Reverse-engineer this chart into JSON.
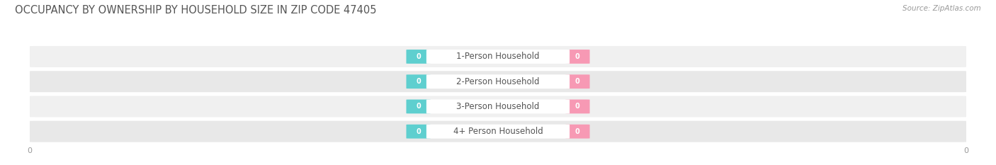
{
  "title": "OCCUPANCY BY OWNERSHIP BY HOUSEHOLD SIZE IN ZIP CODE 47405",
  "source": "Source: ZipAtlas.com",
  "categories": [
    "1-Person Household",
    "2-Person Household",
    "3-Person Household",
    "4+ Person Household"
  ],
  "owner_values": [
    0,
    0,
    0,
    0
  ],
  "renter_values": [
    0,
    0,
    0,
    0
  ],
  "owner_color": "#5ecfcf",
  "renter_color": "#f799b4",
  "row_bg_color_odd": "#f0f0f0",
  "row_bg_color_even": "#e8e8e8",
  "title_color": "#555555",
  "label_color": "#555555",
  "source_color": "#999999",
  "title_fontsize": 10.5,
  "source_fontsize": 7.5,
  "label_fontsize": 8.5,
  "value_fontsize": 7,
  "tick_fontsize": 8,
  "xlim": [
    -1,
    1
  ],
  "background_color": "#ffffff"
}
